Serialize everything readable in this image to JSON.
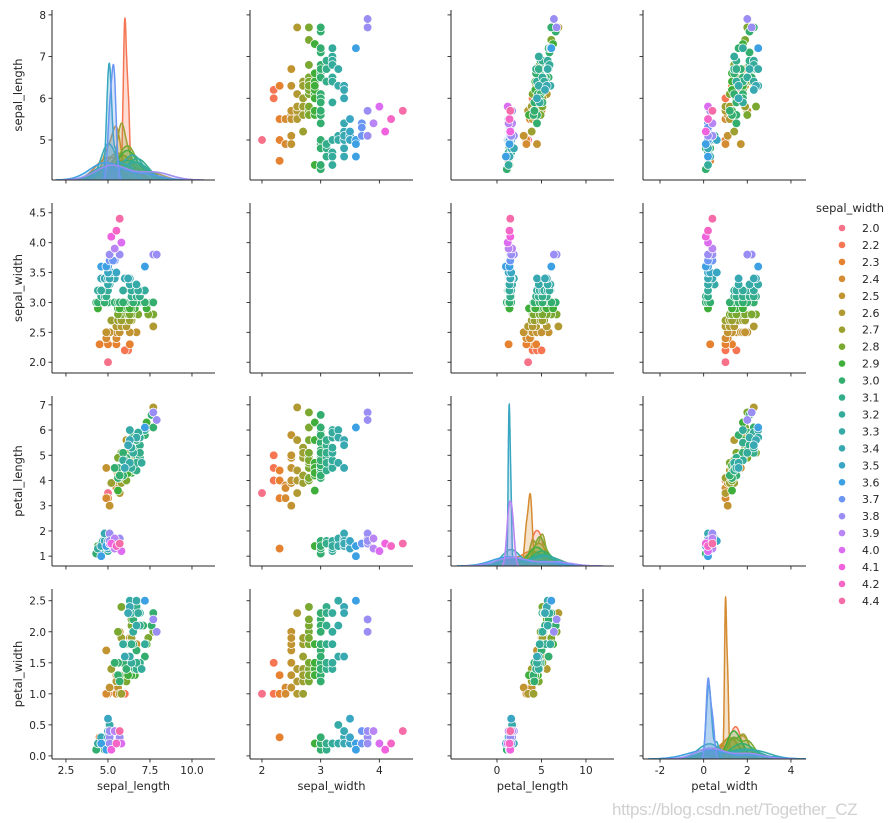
{
  "watermark": "https://blog.csdn.net/Together_CZ",
  "chart_data": {
    "type": "scatter",
    "layout": "pairplot",
    "diag_kind": "kde",
    "hue": "sepal_width",
    "grid": false,
    "variables": [
      {
        "label": "sepal_length",
        "xlim": [
          1.67,
          11.37
        ],
        "xticks": [
          "2.5",
          "5.0",
          "7.5",
          "10.0"
        ],
        "ylim": [
          4.04,
          8.117
        ],
        "yticks": [
          "5",
          "6",
          "7",
          "8"
        ]
      },
      {
        "label": "sepal_width",
        "xlim": [
          1.796,
          4.573
        ],
        "xticks": [
          "2",
          "3",
          "4"
        ],
        "ylim": [
          1.82,
          4.663
        ],
        "yticks": [
          "2.0",
          "2.5",
          "3.0",
          "3.5",
          "4.0",
          "4.5"
        ]
      },
      {
        "label": "petal_length",
        "xlim": [
          -5.17,
          13.15
        ],
        "xticks": [
          "0",
          "5",
          "10"
        ],
        "ylim": [
          0.61,
          7.35
        ],
        "yticks": [
          "1",
          "2",
          "3",
          "4",
          "5",
          "6",
          "7"
        ]
      },
      {
        "label": "petal_width",
        "xlim": [
          -2.78,
          4.69
        ],
        "xticks": [
          "-2",
          "0",
          "2",
          "4"
        ],
        "ylim": [
          -0.05,
          2.689
        ],
        "yticks": [
          "0.0",
          "0.5",
          "1.0",
          "1.5",
          "2.0",
          "2.5"
        ]
      }
    ],
    "legend": {
      "title": "sepal_width",
      "position": "right",
      "levels": [
        "2.0",
        "2.2",
        "2.3",
        "2.4",
        "2.5",
        "2.6",
        "2.7",
        "2.8",
        "2.9",
        "3.0",
        "3.1",
        "3.2",
        "3.3",
        "3.4",
        "3.5",
        "3.6",
        "3.7",
        "3.8",
        "3.9",
        "4.0",
        "4.1",
        "4.2",
        "4.4"
      ],
      "colors": [
        "#f77189",
        "#f67654",
        "#e5812f",
        "#d48b31",
        "#c29331",
        "#b09a31",
        "#9ca031",
        "#7aa831",
        "#40ae3b",
        "#33ae6f",
        "#34ad8a",
        "#35ac9b",
        "#36aaa6",
        "#38a9b2",
        "#39a6c3",
        "#3ca0e3",
        "#6c96f4",
        "#9a8ef4",
        "#b985f4",
        "#dc6cf0",
        "#f062de",
        "#f566c6",
        "#f66ca8"
      ]
    },
    "columns": [
      "sepal_length",
      "sepal_width",
      "petal_length",
      "petal_width"
    ],
    "rows": [
      [
        5.1,
        3.5,
        1.4,
        0.2
      ],
      [
        4.9,
        3.0,
        1.4,
        0.2
      ],
      [
        4.7,
        3.2,
        1.3,
        0.2
      ],
      [
        4.6,
        3.1,
        1.5,
        0.2
      ],
      [
        5.0,
        3.6,
        1.4,
        0.2
      ],
      [
        5.4,
        3.9,
        1.7,
        0.4
      ],
      [
        4.6,
        3.4,
        1.4,
        0.3
      ],
      [
        5.0,
        3.4,
        1.5,
        0.2
      ],
      [
        4.4,
        2.9,
        1.4,
        0.2
      ],
      [
        4.9,
        3.1,
        1.5,
        0.1
      ],
      [
        5.4,
        3.7,
        1.5,
        0.2
      ],
      [
        4.8,
        3.4,
        1.6,
        0.2
      ],
      [
        4.8,
        3.0,
        1.4,
        0.1
      ],
      [
        4.3,
        3.0,
        1.1,
        0.1
      ],
      [
        5.8,
        4.0,
        1.2,
        0.2
      ],
      [
        5.7,
        4.4,
        1.5,
        0.4
      ],
      [
        5.4,
        3.9,
        1.3,
        0.4
      ],
      [
        5.1,
        3.5,
        1.4,
        0.3
      ],
      [
        5.7,
        3.8,
        1.7,
        0.3
      ],
      [
        5.1,
        3.8,
        1.5,
        0.3
      ],
      [
        5.4,
        3.4,
        1.7,
        0.2
      ],
      [
        5.1,
        3.7,
        1.5,
        0.4
      ],
      [
        4.6,
        3.6,
        1.0,
        0.2
      ],
      [
        5.1,
        3.3,
        1.7,
        0.5
      ],
      [
        4.8,
        3.4,
        1.9,
        0.2
      ],
      [
        5.0,
        3.0,
        1.6,
        0.2
      ],
      [
        5.0,
        3.4,
        1.6,
        0.4
      ],
      [
        5.2,
        3.5,
        1.5,
        0.2
      ],
      [
        5.2,
        3.4,
        1.4,
        0.2
      ],
      [
        4.7,
        3.2,
        1.6,
        0.2
      ],
      [
        4.8,
        3.1,
        1.6,
        0.2
      ],
      [
        5.4,
        3.4,
        1.5,
        0.4
      ],
      [
        5.2,
        4.1,
        1.5,
        0.1
      ],
      [
        5.5,
        4.2,
        1.4,
        0.2
      ],
      [
        4.9,
        3.1,
        1.5,
        0.2
      ],
      [
        5.0,
        3.2,
        1.2,
        0.2
      ],
      [
        5.5,
        3.5,
        1.3,
        0.2
      ],
      [
        4.9,
        3.6,
        1.4,
        0.1
      ],
      [
        4.4,
        3.0,
        1.3,
        0.2
      ],
      [
        5.1,
        3.4,
        1.5,
        0.2
      ],
      [
        5.0,
        3.5,
        1.3,
        0.3
      ],
      [
        4.5,
        2.3,
        1.3,
        0.3
      ],
      [
        4.4,
        3.2,
        1.3,
        0.2
      ],
      [
        5.0,
        3.5,
        1.6,
        0.6
      ],
      [
        5.1,
        3.8,
        1.9,
        0.4
      ],
      [
        4.8,
        3.0,
        1.4,
        0.3
      ],
      [
        5.1,
        3.8,
        1.6,
        0.2
      ],
      [
        4.6,
        3.2,
        1.4,
        0.2
      ],
      [
        5.3,
        3.7,
        1.5,
        0.2
      ],
      [
        5.0,
        3.3,
        1.4,
        0.2
      ],
      [
        7.0,
        3.2,
        4.7,
        1.4
      ],
      [
        6.4,
        3.2,
        4.5,
        1.5
      ],
      [
        6.9,
        3.1,
        4.9,
        1.5
      ],
      [
        5.5,
        2.3,
        4.0,
        1.3
      ],
      [
        6.5,
        2.8,
        4.6,
        1.5
      ],
      [
        5.7,
        2.8,
        4.5,
        1.3
      ],
      [
        6.3,
        3.3,
        4.7,
        1.6
      ],
      [
        4.9,
        2.4,
        3.3,
        1.0
      ],
      [
        6.6,
        2.9,
        4.6,
        1.3
      ],
      [
        5.2,
        2.7,
        3.9,
        1.4
      ],
      [
        5.0,
        2.0,
        3.5,
        1.0
      ],
      [
        5.9,
        3.0,
        4.2,
        1.5
      ],
      [
        6.0,
        2.2,
        4.0,
        1.0
      ],
      [
        6.1,
        2.9,
        4.7,
        1.4
      ],
      [
        5.6,
        2.9,
        3.6,
        1.3
      ],
      [
        6.7,
        3.1,
        4.4,
        1.4
      ],
      [
        5.6,
        3.0,
        4.5,
        1.5
      ],
      [
        5.8,
        2.7,
        4.1,
        1.0
      ],
      [
        6.2,
        2.2,
        4.5,
        1.5
      ],
      [
        5.6,
        2.5,
        3.9,
        1.1
      ],
      [
        5.9,
        3.2,
        4.8,
        1.8
      ],
      [
        6.1,
        2.8,
        4.0,
        1.3
      ],
      [
        6.3,
        2.5,
        4.9,
        1.5
      ],
      [
        6.1,
        2.8,
        4.7,
        1.2
      ],
      [
        6.4,
        2.9,
        4.3,
        1.3
      ],
      [
        6.6,
        3.0,
        4.4,
        1.4
      ],
      [
        6.8,
        2.8,
        4.8,
        1.4
      ],
      [
        6.7,
        3.0,
        5.0,
        1.7
      ],
      [
        6.0,
        2.9,
        4.5,
        1.5
      ],
      [
        5.7,
        2.6,
        3.5,
        1.0
      ],
      [
        5.5,
        2.4,
        3.8,
        1.1
      ],
      [
        5.5,
        2.4,
        3.7,
        1.0
      ],
      [
        5.8,
        2.7,
        3.9,
        1.2
      ],
      [
        6.0,
        2.7,
        5.1,
        1.6
      ],
      [
        5.4,
        3.0,
        4.5,
        1.5
      ],
      [
        6.0,
        3.4,
        4.5,
        1.6
      ],
      [
        6.7,
        3.1,
        4.7,
        1.5
      ],
      [
        6.3,
        2.3,
        4.4,
        1.3
      ],
      [
        5.6,
        3.0,
        4.1,
        1.3
      ],
      [
        5.5,
        2.5,
        4.0,
        1.3
      ],
      [
        5.5,
        2.6,
        4.4,
        1.2
      ],
      [
        6.1,
        3.0,
        4.6,
        1.4
      ],
      [
        5.8,
        2.6,
        4.0,
        1.2
      ],
      [
        5.0,
        2.3,
        3.3,
        1.0
      ],
      [
        5.6,
        2.7,
        4.2,
        1.3
      ],
      [
        5.7,
        3.0,
        4.2,
        1.2
      ],
      [
        5.7,
        2.9,
        4.2,
        1.3
      ],
      [
        6.2,
        2.9,
        4.3,
        1.3
      ],
      [
        5.1,
        2.5,
        3.0,
        1.1
      ],
      [
        5.7,
        2.8,
        4.1,
        1.3
      ],
      [
        6.3,
        3.3,
        6.0,
        2.5
      ],
      [
        5.8,
        2.7,
        5.1,
        1.9
      ],
      [
        7.1,
        3.0,
        5.9,
        2.1
      ],
      [
        6.3,
        2.9,
        5.6,
        1.8
      ],
      [
        6.5,
        3.0,
        5.8,
        2.2
      ],
      [
        7.6,
        3.0,
        6.6,
        2.1
      ],
      [
        4.9,
        2.5,
        4.5,
        1.7
      ],
      [
        7.3,
        2.9,
        6.3,
        1.8
      ],
      [
        6.7,
        2.5,
        5.8,
        1.8
      ],
      [
        7.2,
        3.6,
        6.1,
        2.5
      ],
      [
        6.5,
        3.2,
        5.1,
        2.0
      ],
      [
        6.4,
        2.7,
        5.3,
        1.9
      ],
      [
        6.8,
        3.0,
        5.5,
        2.1
      ],
      [
        5.7,
        2.5,
        5.0,
        2.0
      ],
      [
        5.8,
        2.8,
        5.1,
        2.4
      ],
      [
        6.4,
        3.2,
        5.3,
        2.3
      ],
      [
        6.5,
        3.0,
        5.5,
        1.8
      ],
      [
        7.7,
        3.8,
        6.7,
        2.2
      ],
      [
        7.7,
        2.6,
        6.9,
        2.3
      ],
      [
        6.0,
        2.2,
        5.0,
        1.5
      ],
      [
        6.9,
        3.2,
        5.7,
        2.3
      ],
      [
        5.6,
        2.8,
        4.9,
        2.0
      ],
      [
        7.7,
        2.8,
        6.7,
        2.0
      ],
      [
        6.3,
        2.7,
        4.9,
        1.8
      ],
      [
        6.7,
        3.3,
        5.7,
        2.1
      ],
      [
        7.2,
        3.2,
        6.0,
        1.8
      ],
      [
        6.2,
        2.8,
        4.8,
        1.8
      ],
      [
        6.1,
        3.0,
        4.9,
        1.8
      ],
      [
        6.4,
        2.8,
        5.6,
        2.1
      ],
      [
        7.2,
        3.0,
        5.8,
        1.6
      ],
      [
        7.4,
        2.8,
        6.1,
        1.9
      ],
      [
        7.9,
        3.8,
        6.4,
        2.0
      ],
      [
        6.4,
        2.8,
        5.6,
        2.2
      ],
      [
        6.3,
        2.8,
        5.1,
        1.5
      ],
      [
        6.1,
        2.6,
        5.6,
        1.4
      ],
      [
        7.7,
        3.0,
        6.1,
        2.3
      ],
      [
        6.3,
        3.4,
        5.6,
        2.4
      ],
      [
        6.4,
        3.1,
        5.5,
        1.8
      ],
      [
        6.0,
        3.0,
        4.8,
        1.8
      ],
      [
        6.9,
        3.1,
        5.4,
        2.1
      ],
      [
        6.7,
        3.1,
        5.6,
        2.4
      ],
      [
        6.9,
        3.1,
        5.1,
        2.3
      ],
      [
        5.8,
        2.7,
        5.1,
        1.9
      ],
      [
        6.8,
        3.2,
        5.9,
        2.3
      ],
      [
        6.7,
        3.3,
        5.7,
        2.5
      ],
      [
        6.7,
        3.0,
        5.2,
        2.3
      ],
      [
        6.3,
        2.5,
        5.0,
        1.9
      ],
      [
        6.5,
        3.0,
        5.2,
        2.0
      ],
      [
        6.2,
        3.4,
        5.4,
        2.3
      ],
      [
        5.9,
        3.0,
        5.1,
        1.8
      ]
    ]
  }
}
